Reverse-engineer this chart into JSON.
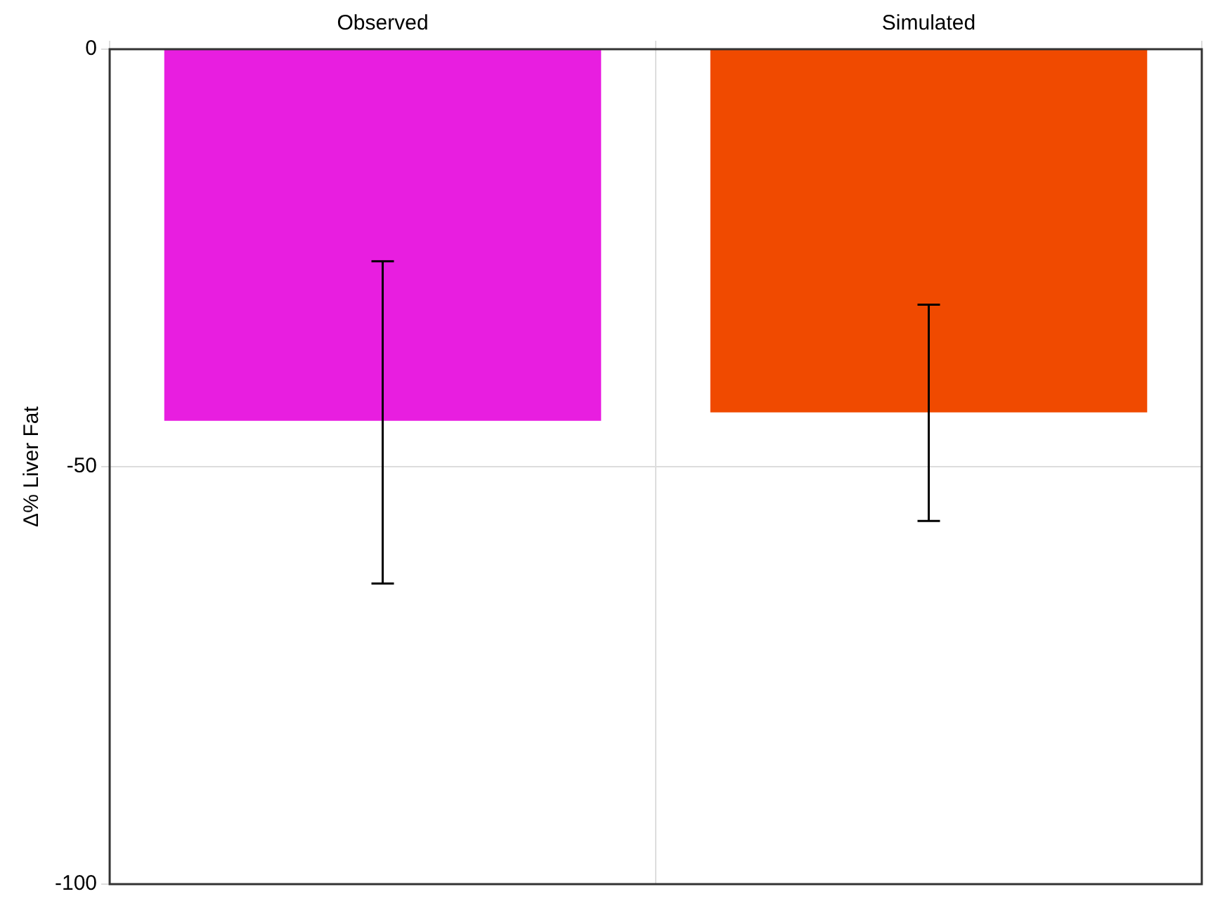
{
  "chart_data": {
    "type": "bar",
    "ylabel": "Δ% Liver Fat",
    "categories": [
      "Observed",
      "Simulated"
    ],
    "values": [
      -44.5,
      -43.5
    ],
    "colors": [
      "#e81ee0",
      "#f04a00"
    ],
    "errors": [
      [
        -64,
        -25.4
      ],
      [
        -56.5,
        -30.6
      ]
    ],
    "ylim": [
      -100,
      0
    ],
    "yticks": [
      -100,
      -50,
      0
    ],
    "grid": true
  }
}
